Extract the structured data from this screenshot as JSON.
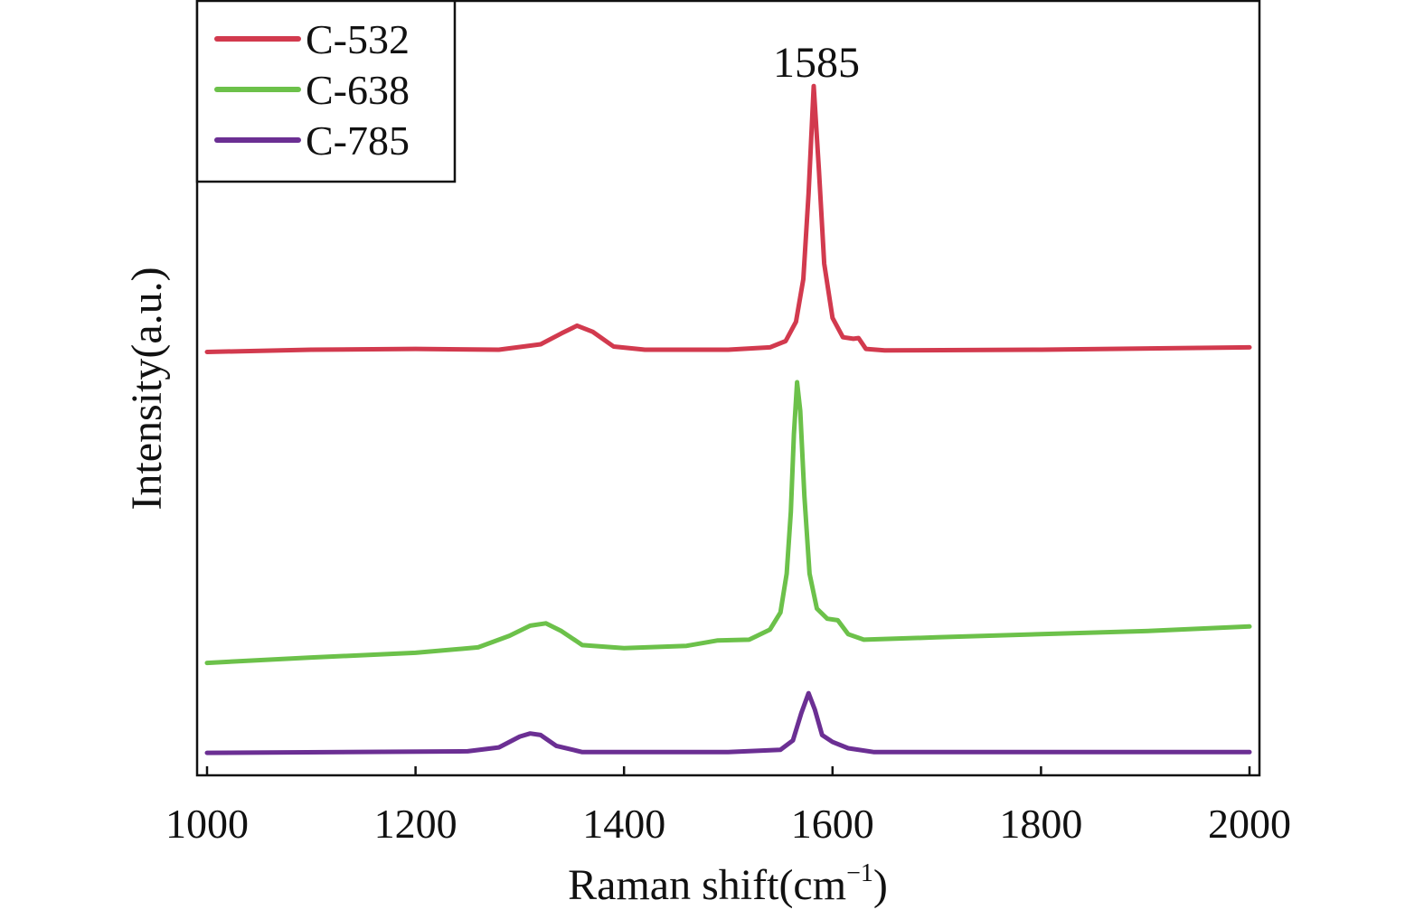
{
  "chart_data": {
    "type": "line",
    "title": "",
    "xlabel": "Raman shift(cm",
    "xlabel_sup": "−1",
    "xlabel_close": ")",
    "ylabel": "Intensity(a.u.)",
    "xlim": [
      1000,
      2000
    ],
    "ylim": [
      0,
      100
    ],
    "xticks": [
      1000,
      1200,
      1400,
      1600,
      1800,
      2000
    ],
    "xtick_labels": [
      "1000",
      "1200",
      "1400",
      "1600",
      "1800",
      "2000"
    ],
    "grid": false,
    "legend_position": "top-left",
    "annotations": [
      {
        "text": "1585",
        "x": 1585
      }
    ],
    "series": [
      {
        "name": "C-532",
        "color": "#d23a4e",
        "x": [
          1000,
          1100,
          1200,
          1280,
          1320,
          1340,
          1355,
          1370,
          1390,
          1420,
          1500,
          1540,
          1555,
          1565,
          1572,
          1577,
          1582,
          1587,
          1592,
          1600,
          1610,
          1620,
          1625,
          1632,
          1650,
          1800,
          2000
        ],
        "y": [
          54.6,
          54.9,
          55.0,
          54.9,
          55.6,
          57.0,
          58.0,
          57.2,
          55.3,
          54.9,
          54.9,
          55.2,
          56.0,
          58.5,
          64,
          75,
          88.9,
          78,
          66,
          59,
          56.5,
          56.3,
          56.4,
          55.0,
          54.8,
          54.9,
          55.2
        ]
      },
      {
        "name": "C-638",
        "color": "#6cc14a",
        "x": [
          1000,
          1100,
          1200,
          1260,
          1290,
          1310,
          1325,
          1340,
          1360,
          1400,
          1460,
          1490,
          1520,
          1540,
          1550,
          1556,
          1560,
          1563,
          1566,
          1569,
          1573,
          1578,
          1585,
          1595,
          1605,
          1615,
          1630,
          1700,
          1800,
          1900,
          2000
        ],
        "y": [
          14.5,
          15.2,
          15.8,
          16.5,
          18.0,
          19.3,
          19.6,
          18.6,
          16.8,
          16.4,
          16.7,
          17.4,
          17.5,
          18.8,
          21,
          26,
          34,
          44,
          50.7,
          47,
          36,
          26,
          21.5,
          20.2,
          20.0,
          18.2,
          17.5,
          17.8,
          18.2,
          18.6,
          19.2
        ]
      },
      {
        "name": "C-785",
        "color": "#6b2f93",
        "x": [
          1000,
          1250,
          1280,
          1300,
          1310,
          1320,
          1335,
          1360,
          1500,
          1550,
          1562,
          1570,
          1577,
          1583,
          1590,
          1600,
          1615,
          1640,
          2000
        ],
        "y": [
          2.9,
          3.1,
          3.6,
          5.0,
          5.4,
          5.2,
          3.8,
          3.0,
          3.0,
          3.3,
          4.5,
          8,
          10.6,
          8.5,
          5.2,
          4.3,
          3.5,
          3.0,
          3.0
        ]
      }
    ]
  }
}
